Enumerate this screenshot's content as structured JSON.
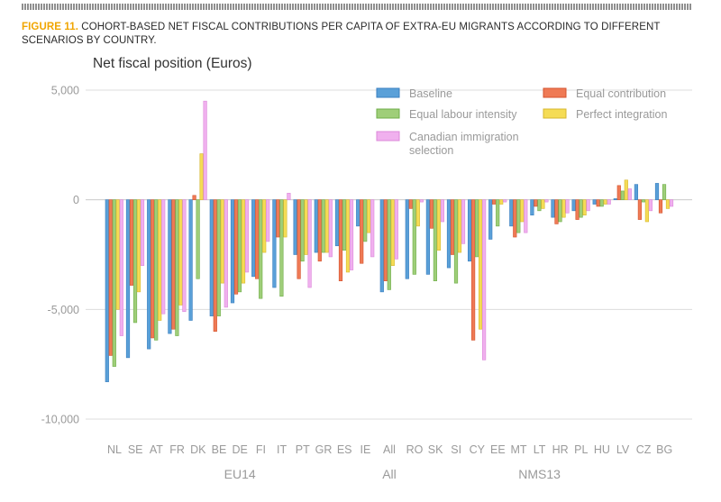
{
  "figure": {
    "label": "FIGURE 11.",
    "title": " COHORT-BASED NET FISCAL CONTRIBUTIONS PER CAPITA OF EXTRA-EU MIGRANTS ACCORDING TO DIFFERENT SCENARIOS BY COUNTRY."
  },
  "chart_data": {
    "type": "bar",
    "ylabel": "Net fiscal position (Euros)",
    "ylim": [
      -10000,
      5000
    ],
    "yticks": [
      5000,
      0,
      -5000,
      -10000
    ],
    "ytick_labels": [
      "5,000",
      "0",
      "-5,000",
      "-10,000"
    ],
    "grid": true,
    "legend_position": "top-right",
    "categories": [
      "NL",
      "SE",
      "AT",
      "FR",
      "DK",
      "BE",
      "DE",
      "FI",
      "IT",
      "PT",
      "GR",
      "ES",
      "IE",
      "All",
      "RO",
      "SK",
      "SI",
      "CY",
      "EE",
      "MT",
      "LT",
      "HR",
      "PL",
      "HU",
      "LV",
      "CZ",
      "BG"
    ],
    "groups": [
      {
        "label": "EU14",
        "from": "NL",
        "to": "IE"
      },
      {
        "label": "All",
        "from": "All",
        "to": "All"
      },
      {
        "label": "NMS13",
        "from": "RO",
        "to": "BG"
      }
    ],
    "series": [
      {
        "name": "Baseline",
        "color": "#5aa0d8",
        "edge": "#3a7fc0",
        "values": [
          -8300,
          -7200,
          -6800,
          -6100,
          -5500,
          -5300,
          -4700,
          -3500,
          -4000,
          -2500,
          -2400,
          -2100,
          -1200,
          -4200,
          -3600,
          -3400,
          -3100,
          -2800,
          -1800,
          -1200,
          -700,
          -800,
          -500,
          -200,
          50,
          700,
          750
        ]
      },
      {
        "name": "Equal contribution",
        "color": "#ef7a55",
        "edge": "#d4532e",
        "values": [
          -7100,
          -3900,
          -6300,
          -5900,
          200,
          -6000,
          -4300,
          -3600,
          -1700,
          -3600,
          -2800,
          -3700,
          -2900,
          -3700,
          -400,
          -1300,
          -2500,
          -6400,
          -200,
          -1700,
          -300,
          -1100,
          -900,
          -300,
          650,
          -900,
          -600
        ]
      },
      {
        "name": "Equal labour intensity",
        "color": "#9fce79",
        "edge": "#6fae49",
        "values": [
          -7600,
          -5600,
          -6400,
          -6200,
          -3600,
          -5300,
          -4200,
          -4500,
          -4400,
          -2800,
          -2400,
          -2300,
          -1900,
          -4100,
          -3400,
          -3700,
          -3800,
          -2600,
          -1200,
          -1500,
          -500,
          -1000,
          -800,
          -300,
          400,
          -100,
          700
        ]
      },
      {
        "name": "Perfect integration",
        "color": "#f5dc55",
        "edge": "#d6b72e",
        "values": [
          -5000,
          -4200,
          -5500,
          -4800,
          2100,
          -3800,
          -3800,
          -2400,
          -1700,
          -2500,
          -2400,
          -3300,
          -1500,
          -3000,
          -1200,
          -2300,
          -2400,
          -5900,
          -200,
          -1000,
          -400,
          -800,
          -700,
          -200,
          900,
          -1000,
          -400
        ]
      },
      {
        "name": "Canadian immigration selection",
        "color": "#f0b0ee",
        "edge": "#dc88da",
        "values": [
          -6200,
          -3000,
          -5200,
          -5100,
          4500,
          -4900,
          -3300,
          -1900,
          300,
          -4000,
          -2600,
          -3200,
          -2600,
          -2700,
          -100,
          -1000,
          -2000,
          -7300,
          -100,
          -1500,
          -100,
          -600,
          -500,
          -200,
          500,
          -500,
          -300
        ]
      }
    ]
  }
}
